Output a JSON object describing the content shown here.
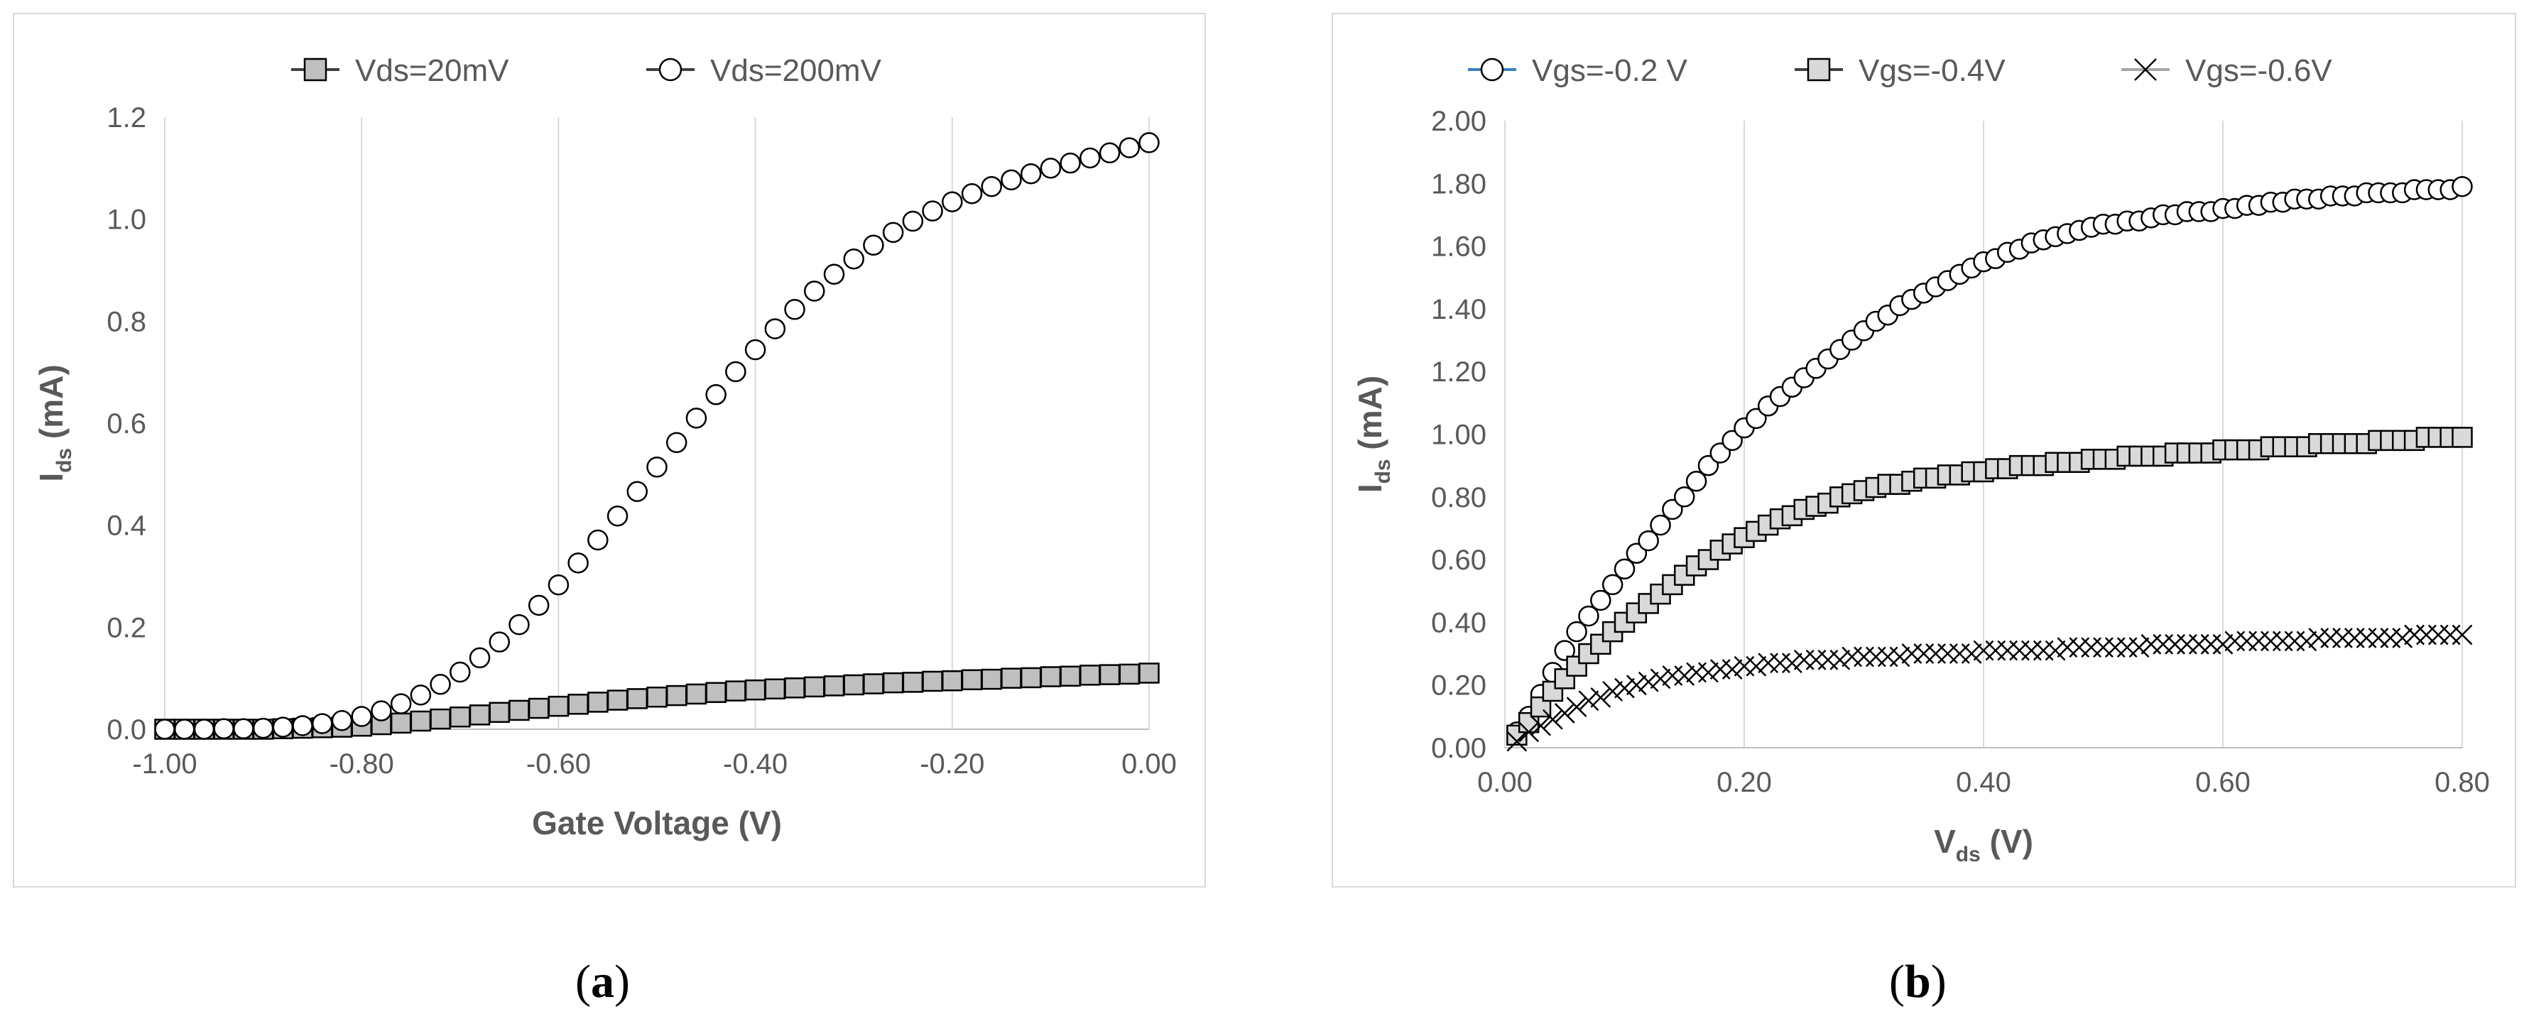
{
  "captions": {
    "a": {
      "open": "(",
      "letter": "a",
      "close": ")"
    },
    "b": {
      "open": "(",
      "letter": "b",
      "close": ")"
    }
  },
  "chart_data": [
    {
      "id": "a",
      "type": "scatter",
      "xlabel": "Gate Voltage (V)",
      "ylabel": {
        "main": "I",
        "sub": "ds",
        "unit": " (mA)"
      },
      "xlim": [
        -1.0,
        0.0
      ],
      "ylim": [
        0.0,
        1.2
      ],
      "xticks": [
        -1.0,
        -0.8,
        -0.6,
        -0.4,
        -0.2,
        0.0
      ],
      "xtick_labels": [
        "-1.00",
        "-0.80",
        "-0.60",
        "-0.40",
        "-0.20",
        "0.00"
      ],
      "yticks": [
        0.0,
        0.2,
        0.4,
        0.6,
        0.8,
        1.0,
        1.2
      ],
      "ytick_labels": [
        "0.0",
        "0.2",
        "0.4",
        "0.6",
        "0.8",
        "1.0",
        "1.2"
      ],
      "grid": "vertical",
      "legend": "top",
      "series": [
        {
          "name": "Vds=20mV",
          "marker": "square",
          "fill": "#bfbfbf",
          "x": [
            -1.0,
            -0.98,
            -0.96,
            -0.94,
            -0.92,
            -0.9,
            -0.88,
            -0.86,
            -0.84,
            -0.82,
            -0.8,
            -0.78,
            -0.76,
            -0.74,
            -0.72,
            -0.7,
            -0.68,
            -0.66,
            -0.64,
            -0.62,
            -0.6,
            -0.58,
            -0.56,
            -0.54,
            -0.52,
            -0.5,
            -0.48,
            -0.46,
            -0.44,
            -0.42,
            -0.4,
            -0.38,
            -0.36,
            -0.34,
            -0.32,
            -0.3,
            -0.28,
            -0.26,
            -0.24,
            -0.22,
            -0.2,
            -0.18,
            -0.16,
            -0.14,
            -0.12,
            -0.1,
            -0.08,
            -0.06,
            -0.04,
            -0.02,
            0.0
          ],
          "y": [
            0.0,
            0.0,
            0.0,
            0.0,
            0.0,
            0.0,
            0.001,
            0.002,
            0.003,
            0.004,
            0.006,
            0.009,
            0.012,
            0.016,
            0.02,
            0.024,
            0.028,
            0.033,
            0.037,
            0.041,
            0.045,
            0.049,
            0.053,
            0.057,
            0.06,
            0.063,
            0.066,
            0.069,
            0.072,
            0.075,
            0.077,
            0.079,
            0.081,
            0.083,
            0.085,
            0.087,
            0.089,
            0.091,
            0.092,
            0.094,
            0.095,
            0.097,
            0.098,
            0.1,
            0.101,
            0.103,
            0.104,
            0.106,
            0.107,
            0.108,
            0.11
          ]
        },
        {
          "name": "Vds=200mV",
          "marker": "circle",
          "fill": "#ffffff",
          "x": [
            -1.0,
            -0.98,
            -0.96,
            -0.94,
            -0.92,
            -0.9,
            -0.88,
            -0.86,
            -0.84,
            -0.82,
            -0.8,
            -0.78,
            -0.76,
            -0.74,
            -0.72,
            -0.7,
            -0.68,
            -0.66,
            -0.64,
            -0.62,
            -0.6,
            -0.58,
            -0.56,
            -0.54,
            -0.52,
            -0.5,
            -0.48,
            -0.46,
            -0.44,
            -0.42,
            -0.4,
            -0.38,
            -0.36,
            -0.34,
            -0.32,
            -0.3,
            -0.28,
            -0.26,
            -0.24,
            -0.22,
            -0.2,
            -0.18,
            -0.16,
            -0.14,
            -0.12,
            -0.1,
            -0.08,
            -0.06,
            -0.04,
            -0.02,
            0.0
          ],
          "y": [
            0.0,
            0.0,
            0.0,
            0.001,
            0.001,
            0.002,
            0.004,
            0.007,
            0.011,
            0.017,
            0.025,
            0.036,
            0.05,
            0.067,
            0.088,
            0.112,
            0.14,
            0.171,
            0.205,
            0.243,
            0.283,
            0.326,
            0.371,
            0.418,
            0.466,
            0.514,
            0.562,
            0.61,
            0.656,
            0.701,
            0.744,
            0.785,
            0.823,
            0.859,
            0.892,
            0.922,
            0.949,
            0.974,
            0.996,
            1.016,
            1.034,
            1.05,
            1.064,
            1.077,
            1.089,
            1.1,
            1.11,
            1.12,
            1.13,
            1.14,
            1.15
          ]
        }
      ]
    },
    {
      "id": "b",
      "type": "scatter",
      "xlabel": {
        "main": "V",
        "sub": "ds",
        "unit": " (V)"
      },
      "ylabel": {
        "main": "I",
        "sub": "ds",
        "unit": " (mA)"
      },
      "xlim": [
        0.0,
        0.8
      ],
      "ylim": [
        0.0,
        2.0
      ],
      "xticks": [
        0.0,
        0.2,
        0.4,
        0.6,
        0.8
      ],
      "xtick_labels": [
        "0.00",
        "0.20",
        "0.40",
        "0.60",
        "0.80"
      ],
      "yticks": [
        0.0,
        0.2,
        0.4,
        0.6,
        0.8,
        1.0,
        1.2,
        1.4,
        1.6,
        1.8,
        2.0
      ],
      "ytick_labels": [
        "0.00",
        "0.20",
        "0.40",
        "0.60",
        "0.80",
        "1.00",
        "1.20",
        "1.40",
        "1.60",
        "1.80",
        "2.00"
      ],
      "grid": "vertical",
      "legend": "top",
      "series": [
        {
          "name": "Vgs=-0.2 V",
          "marker": "circle",
          "fill": "#ffffff",
          "legend_line": "#3a7fc1",
          "x": [
            0.01,
            0.02,
            0.03,
            0.04,
            0.05,
            0.06,
            0.07,
            0.08,
            0.09,
            0.1,
            0.11,
            0.12,
            0.13,
            0.14,
            0.15,
            0.16,
            0.17,
            0.18,
            0.19,
            0.2,
            0.21,
            0.22,
            0.23,
            0.24,
            0.25,
            0.26,
            0.27,
            0.28,
            0.29,
            0.3,
            0.31,
            0.32,
            0.33,
            0.34,
            0.35,
            0.36,
            0.37,
            0.38,
            0.39,
            0.4,
            0.41,
            0.42,
            0.43,
            0.44,
            0.45,
            0.46,
            0.47,
            0.48,
            0.49,
            0.5,
            0.51,
            0.52,
            0.53,
            0.54,
            0.55,
            0.56,
            0.57,
            0.58,
            0.59,
            0.6,
            0.61,
            0.62,
            0.63,
            0.64,
            0.65,
            0.66,
            0.67,
            0.68,
            0.69,
            0.7,
            0.71,
            0.72,
            0.73,
            0.74,
            0.75,
            0.76,
            0.77,
            0.78,
            0.79,
            0.8
          ],
          "y": [
            0.05,
            0.1,
            0.17,
            0.24,
            0.31,
            0.37,
            0.42,
            0.47,
            0.52,
            0.57,
            0.62,
            0.66,
            0.71,
            0.76,
            0.8,
            0.85,
            0.9,
            0.94,
            0.98,
            1.02,
            1.05,
            1.09,
            1.12,
            1.15,
            1.18,
            1.21,
            1.24,
            1.27,
            1.3,
            1.33,
            1.36,
            1.38,
            1.41,
            1.43,
            1.45,
            1.47,
            1.49,
            1.51,
            1.53,
            1.55,
            1.56,
            1.58,
            1.59,
            1.61,
            1.62,
            1.63,
            1.64,
            1.65,
            1.66,
            1.67,
            1.67,
            1.68,
            1.68,
            1.69,
            1.7,
            1.7,
            1.71,
            1.71,
            1.71,
            1.72,
            1.72,
            1.73,
            1.73,
            1.74,
            1.74,
            1.75,
            1.75,
            1.75,
            1.76,
            1.76,
            1.76,
            1.77,
            1.77,
            1.77,
            1.77,
            1.78,
            1.78,
            1.78,
            1.78,
            1.79
          ]
        },
        {
          "name": "Vgs=-0.4V",
          "marker": "square",
          "fill": "#d9d9d9",
          "legend_line": "#404040",
          "x": [
            0.01,
            0.02,
            0.03,
            0.04,
            0.05,
            0.06,
            0.07,
            0.08,
            0.09,
            0.1,
            0.11,
            0.12,
            0.13,
            0.14,
            0.15,
            0.16,
            0.17,
            0.18,
            0.19,
            0.2,
            0.21,
            0.22,
            0.23,
            0.24,
            0.25,
            0.26,
            0.27,
            0.28,
            0.29,
            0.3,
            0.31,
            0.32,
            0.33,
            0.34,
            0.35,
            0.36,
            0.37,
            0.38,
            0.39,
            0.4,
            0.41,
            0.42,
            0.43,
            0.44,
            0.45,
            0.46,
            0.47,
            0.48,
            0.49,
            0.5,
            0.51,
            0.52,
            0.53,
            0.54,
            0.55,
            0.56,
            0.57,
            0.58,
            0.59,
            0.6,
            0.61,
            0.62,
            0.63,
            0.64,
            0.65,
            0.66,
            0.67,
            0.68,
            0.69,
            0.7,
            0.71,
            0.72,
            0.73,
            0.74,
            0.75,
            0.76,
            0.77,
            0.78,
            0.79,
            0.8
          ],
          "y": [
            0.04,
            0.08,
            0.13,
            0.18,
            0.22,
            0.26,
            0.3,
            0.33,
            0.37,
            0.4,
            0.43,
            0.46,
            0.49,
            0.52,
            0.55,
            0.58,
            0.6,
            0.63,
            0.65,
            0.67,
            0.69,
            0.71,
            0.73,
            0.74,
            0.76,
            0.77,
            0.78,
            0.8,
            0.81,
            0.82,
            0.83,
            0.84,
            0.84,
            0.85,
            0.86,
            0.86,
            0.87,
            0.87,
            0.88,
            0.88,
            0.89,
            0.89,
            0.9,
            0.9,
            0.9,
            0.91,
            0.91,
            0.91,
            0.92,
            0.92,
            0.92,
            0.93,
            0.93,
            0.93,
            0.93,
            0.94,
            0.94,
            0.94,
            0.94,
            0.95,
            0.95,
            0.95,
            0.95,
            0.96,
            0.96,
            0.96,
            0.96,
            0.97,
            0.97,
            0.97,
            0.97,
            0.97,
            0.98,
            0.98,
            0.98,
            0.98,
            0.99,
            0.99,
            0.99,
            0.99
          ]
        },
        {
          "name": "Vgs=-0.6V",
          "marker": "x",
          "fill": "none",
          "legend_line": "#a6a6a6",
          "x": [
            0.01,
            0.02,
            0.03,
            0.04,
            0.05,
            0.06,
            0.07,
            0.08,
            0.09,
            0.1,
            0.11,
            0.12,
            0.13,
            0.14,
            0.15,
            0.16,
            0.17,
            0.18,
            0.19,
            0.2,
            0.21,
            0.22,
            0.23,
            0.24,
            0.25,
            0.26,
            0.27,
            0.28,
            0.29,
            0.3,
            0.31,
            0.32,
            0.33,
            0.34,
            0.35,
            0.36,
            0.37,
            0.38,
            0.39,
            0.4,
            0.41,
            0.42,
            0.43,
            0.44,
            0.45,
            0.46,
            0.47,
            0.48,
            0.49,
            0.5,
            0.51,
            0.52,
            0.53,
            0.54,
            0.55,
            0.56,
            0.57,
            0.58,
            0.59,
            0.6,
            0.61,
            0.62,
            0.63,
            0.64,
            0.65,
            0.66,
            0.67,
            0.68,
            0.69,
            0.7,
            0.71,
            0.72,
            0.73,
            0.74,
            0.75,
            0.76,
            0.77,
            0.78,
            0.79,
            0.8
          ],
          "y": [
            0.02,
            0.05,
            0.07,
            0.09,
            0.11,
            0.13,
            0.15,
            0.16,
            0.18,
            0.19,
            0.2,
            0.21,
            0.22,
            0.23,
            0.23,
            0.24,
            0.24,
            0.25,
            0.25,
            0.26,
            0.26,
            0.27,
            0.27,
            0.27,
            0.28,
            0.28,
            0.28,
            0.28,
            0.29,
            0.29,
            0.29,
            0.29,
            0.29,
            0.3,
            0.3,
            0.3,
            0.3,
            0.3,
            0.3,
            0.31,
            0.31,
            0.31,
            0.31,
            0.31,
            0.31,
            0.31,
            0.32,
            0.32,
            0.32,
            0.32,
            0.32,
            0.32,
            0.32,
            0.33,
            0.33,
            0.33,
            0.33,
            0.33,
            0.33,
            0.33,
            0.34,
            0.34,
            0.34,
            0.34,
            0.34,
            0.34,
            0.34,
            0.35,
            0.35,
            0.35,
            0.35,
            0.35,
            0.35,
            0.35,
            0.35,
            0.36,
            0.36,
            0.36,
            0.36,
            0.36
          ]
        }
      ]
    }
  ]
}
